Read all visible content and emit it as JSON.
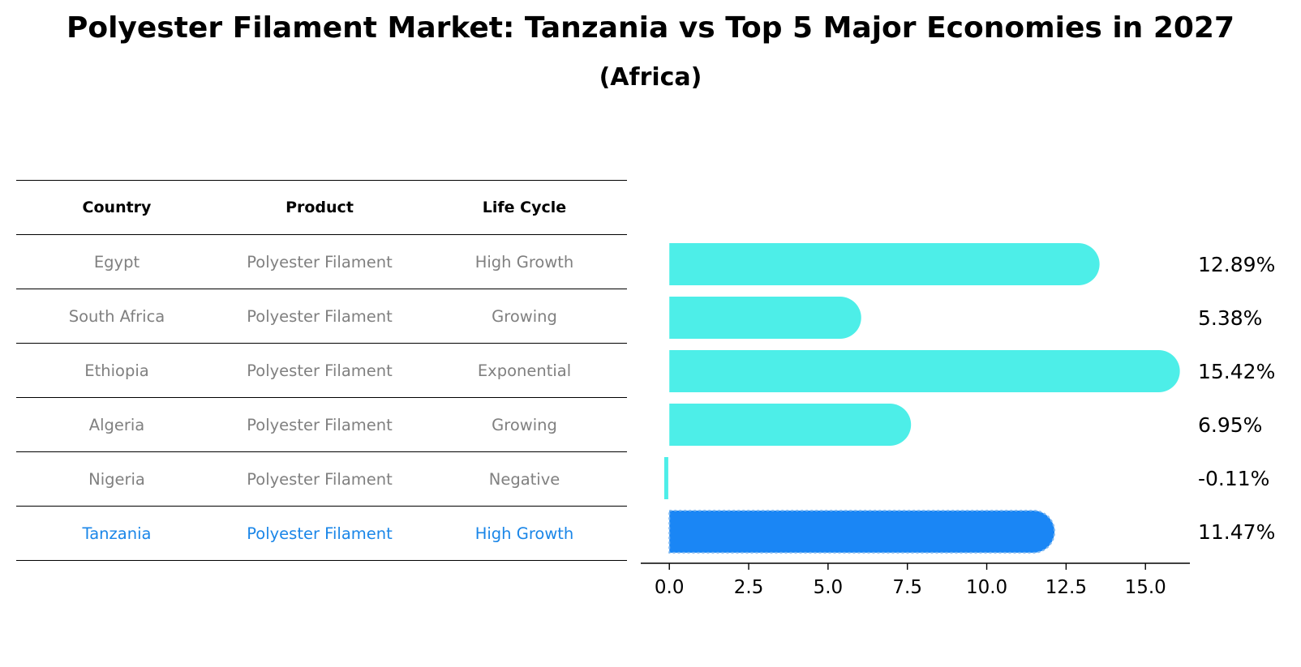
{
  "title": "Polyester Filament Market: Tanzania vs Top 5 Major Economies in 2027",
  "subtitle": "(Africa)",
  "table": {
    "headers": [
      "Country",
      "Product",
      "Life Cycle"
    ],
    "rows": [
      {
        "country": "Egypt",
        "product": "Polyester Filament",
        "life_cycle": "High Growth",
        "highlight": false
      },
      {
        "country": "South Africa",
        "product": "Polyester Filament",
        "life_cycle": "Growing",
        "highlight": false
      },
      {
        "country": "Ethiopia",
        "product": "Polyester Filament",
        "life_cycle": "Exponential",
        "highlight": false
      },
      {
        "country": "Algeria",
        "product": "Polyester Filament",
        "life_cycle": "Growing",
        "highlight": false
      },
      {
        "country": "Nigeria",
        "product": "Polyester Filament",
        "life_cycle": "Negative",
        "highlight": false
      },
      {
        "country": "Tanzania",
        "product": "Polyester Filament",
        "life_cycle": "High Growth",
        "highlight": true
      }
    ]
  },
  "chart_data": {
    "type": "bar",
    "orientation": "horizontal",
    "categories": [
      "Egypt",
      "South Africa",
      "Ethiopia",
      "Algeria",
      "Nigeria",
      "Tanzania"
    ],
    "values": [
      12.89,
      5.38,
      15.42,
      6.95,
      -0.11,
      11.47
    ],
    "value_labels": [
      "12.89%",
      "5.38%",
      "15.42%",
      "6.95%",
      "-0.11%",
      "11.47%"
    ],
    "xlim": [
      -0.9,
      16.4
    ],
    "xticks": [
      0.0,
      2.5,
      5.0,
      7.5,
      10.0,
      12.5,
      15.0
    ],
    "xtick_labels": [
      "0.0",
      "2.5",
      "5.0",
      "7.5",
      "10.0",
      "12.5",
      "15.0"
    ],
    "colors": {
      "default": "#4deee8",
      "highlight": "#1a86f5"
    },
    "highlight_category": "Tanzania"
  }
}
